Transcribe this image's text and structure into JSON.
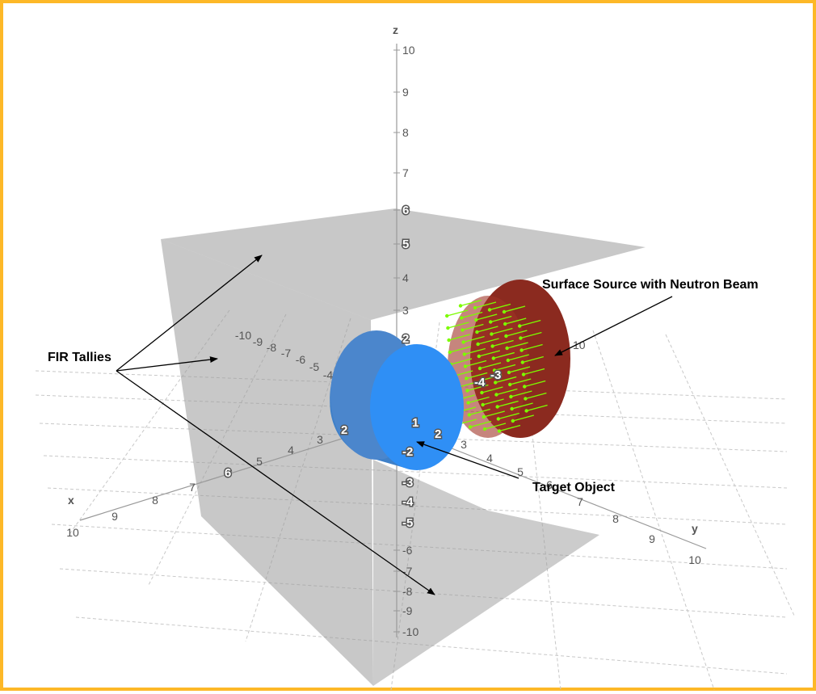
{
  "colors": {
    "border": "#FDB827",
    "tally_planes": "#9a9a9a",
    "target": "#2f8ff5",
    "source_disk": "#8b2a1f",
    "beam": "#7cfc00",
    "grid": "#c8c8c8",
    "axis": "#999999"
  },
  "axes": {
    "x_label": "x",
    "y_label": "y",
    "z_label": "z",
    "z_ticks": [
      "10",
      "9",
      "8",
      "7",
      "6",
      "5",
      "4",
      "3",
      "2",
      "1",
      "-1",
      "-2",
      "-3",
      "-4",
      "-5",
      "-6",
      "-7",
      "-8",
      "-9",
      "-10"
    ],
    "x_ticks": [
      "10",
      "9",
      "8",
      "7",
      "6",
      "5",
      "4",
      "3",
      "2",
      "1"
    ],
    "y_ticks": [
      "2",
      "3",
      "4",
      "5",
      "6",
      "7",
      "8",
      "9",
      "10"
    ],
    "neg_x_ticks": [
      "-10",
      "-9",
      "-8",
      "-7",
      "-6",
      "-5",
      "-4"
    ]
  },
  "labels": {
    "fir_tallies": "FIR Tallies",
    "surface_source": "Surface Source with Neutron Beam",
    "target_object": "Target Object"
  },
  "scene_markers": {
    "target_face_1": "1",
    "target_face_2": "2",
    "target_side_2": "2",
    "source_minus4": "-4",
    "source_minus3": "-3",
    "source_10": "10"
  }
}
